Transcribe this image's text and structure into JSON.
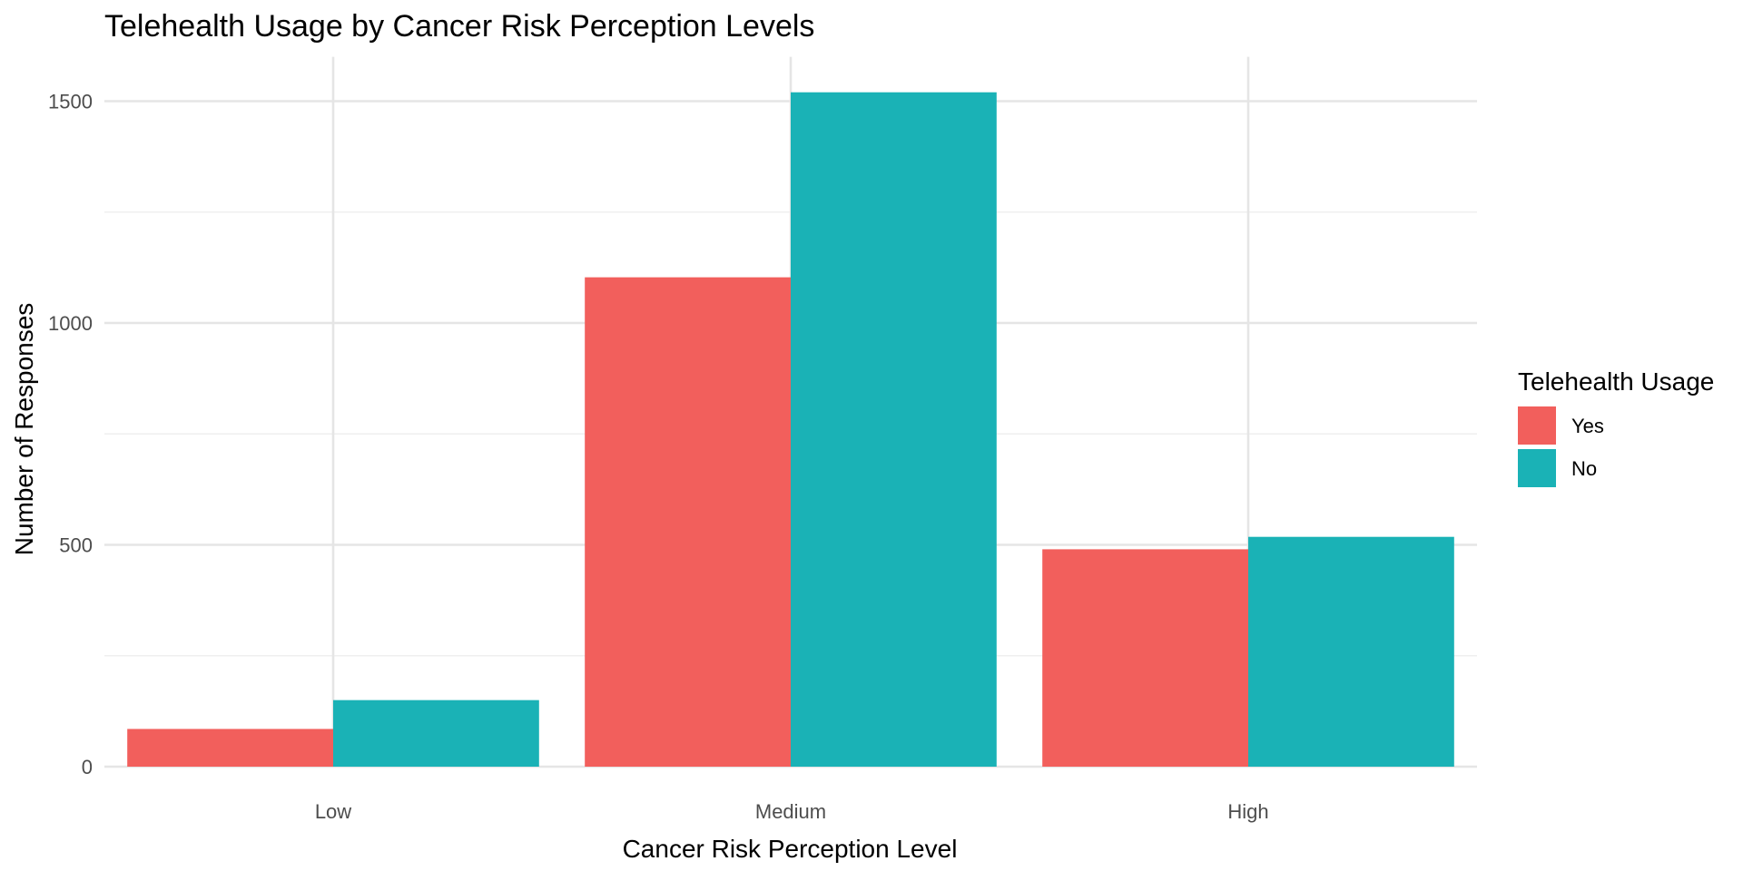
{
  "chart_data": {
    "type": "bar",
    "title": "Telehealth Usage by Cancer Risk Perception Levels",
    "xlabel": "Cancer Risk Perception Level",
    "ylabel": "Number of Responses",
    "categories": [
      "Low",
      "Medium",
      "High"
    ],
    "series": [
      {
        "name": "Yes",
        "color": "#F25F5C",
        "values": [
          85,
          1103,
          490
        ]
      },
      {
        "name": "No",
        "color": "#1AB2B6",
        "values": [
          150,
          1520,
          518
        ]
      }
    ],
    "ylim": [
      0,
      1600
    ],
    "y_ticks": [
      0,
      500,
      1000,
      1500
    ],
    "y_minor_ticks": [
      250,
      750,
      1250
    ],
    "grid": true,
    "legend": {
      "title": "Telehealth Usage",
      "placement": "right"
    }
  }
}
